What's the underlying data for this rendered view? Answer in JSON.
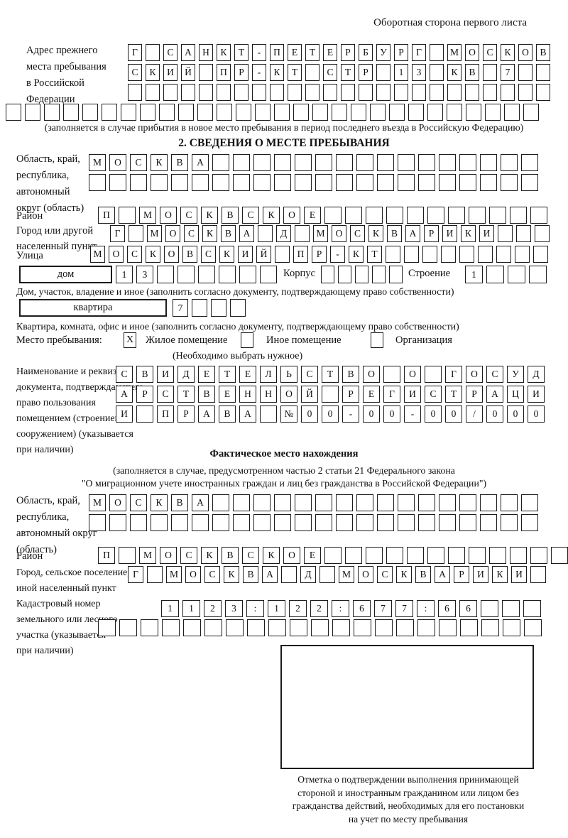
{
  "page": {
    "back_note": "Оборотная сторона первого листа"
  },
  "prev_address": {
    "label": "Адрес прежнего\nместа пребывания\nв Российской\nФедерации",
    "row1": [
      "Г",
      "",
      "С",
      "А",
      "Н",
      "К",
      "Т",
      "-",
      "П",
      "Е",
      "Т",
      "Е",
      "Р",
      "Б",
      "У",
      "Р",
      "Г",
      "",
      "М",
      "О",
      "С",
      "К",
      "О",
      "В"
    ],
    "row2": [
      "С",
      "К",
      "И",
      "Й",
      "",
      "П",
      "Р",
      "-",
      "К",
      "Т",
      "",
      "С",
      "Т",
      "Р",
      "",
      "1",
      "3",
      "",
      "К",
      "В",
      "",
      "7",
      "",
      ""
    ],
    "row3": 24,
    "row4": 28,
    "note": "(заполняется в случае прибытия в новое место пребывания в период последнего въезда в Российскую Федерацию)"
  },
  "section2": {
    "title": "2. СВЕДЕНИЯ О МЕСТЕ ПРЕБЫВАНИЯ",
    "region": {
      "label": "Область, край,\nреспублика,\nавтономный\nокруг (область)",
      "row1": [
        "М",
        "О",
        "С",
        "К",
        "В",
        "А",
        "",
        "",
        "",
        "",
        "",
        "",
        "",
        "",
        "",
        "",
        "",
        "",
        "",
        "",
        "",
        ""
      ],
      "row2": 22
    },
    "district": {
      "label": "Район",
      "row": [
        "П",
        "",
        "М",
        "О",
        "С",
        "К",
        "В",
        "С",
        "К",
        "О",
        "Е",
        "",
        "",
        "",
        "",
        "",
        "",
        "",
        "",
        "",
        "",
        ""
      ]
    },
    "city": {
      "label": "Город или другой\nнаселенный пункт",
      "row": [
        "Г",
        "",
        "М",
        "О",
        "С",
        "К",
        "В",
        "А",
        "",
        "Д",
        "",
        "М",
        "О",
        "С",
        "К",
        "В",
        "А",
        "Р",
        "И",
        "К",
        "И",
        "",
        "",
        ""
      ]
    },
    "street": {
      "label": "Улица",
      "row": [
        "М",
        "О",
        "С",
        "К",
        "О",
        "В",
        "С",
        "К",
        "И",
        "Й",
        "",
        "П",
        "Р",
        "-",
        "К",
        "Т",
        "",
        "",
        "",
        "",
        "",
        "",
        "",
        "",
        ""
      ]
    },
    "house": {
      "box_label": "дом",
      "cells": [
        "1",
        "3",
        "",
        "",
        "",
        "",
        "",
        ""
      ],
      "korpus_label": "Корпус",
      "korpus_cells": 5,
      "stroenie_label": "Строение",
      "stroenie_cells": [
        "1",
        "",
        "",
        ""
      ],
      "note": "Дом, участок, владение и иное (заполнить согласно документу, подтверждающему право собственности)"
    },
    "apartment": {
      "box_label": "квартира",
      "cells": [
        "7",
        "",
        "",
        ""
      ],
      "note": "Квартира, комната, офис и иное (заполнить согласно документу, подтверждающему право собственности)"
    },
    "stay_type": {
      "label": "Место пребывания:",
      "options": [
        {
          "label": "Жилое помещение",
          "checked": "X"
        },
        {
          "label": "Иное помещение",
          "checked": ""
        },
        {
          "label": "Организация",
          "checked": ""
        }
      ],
      "note": "(Необходимо выбрать нужное)"
    },
    "document": {
      "label": "Наименование и реквизиты\nдокумента, подтверждающего\nправо пользования\nпомещением (строением,\nсооружением) (указывается\nпри наличии)",
      "row1": [
        "С",
        "В",
        "И",
        "Д",
        "Е",
        "Т",
        "Е",
        "Л",
        "Ь",
        "С",
        "Т",
        "В",
        "О",
        "",
        "О",
        "",
        "Г",
        "О",
        "С",
        "У",
        "Д"
      ],
      "row2": [
        "А",
        "Р",
        "С",
        "Т",
        "В",
        "Е",
        "Н",
        "Н",
        "О",
        "Й",
        "",
        "Р",
        "Е",
        "Г",
        "И",
        "С",
        "Т",
        "Р",
        "А",
        "Ц",
        "И"
      ],
      "row3": [
        "И",
        "",
        "П",
        "Р",
        "А",
        "В",
        "А",
        "",
        "№",
        "0",
        "0",
        "-",
        "0",
        "0",
        "-",
        "0",
        "0",
        "/",
        "0",
        "0",
        "0"
      ]
    }
  },
  "actual_location": {
    "title": "Фактическое место нахождения",
    "note1": "(заполняется в случае, предусмотренном частью 2 статьи 21 Федерального закона",
    "note2": "\"О миграционном учете иностранных граждан и лиц без гражданства в Российской Федерации\")",
    "region": {
      "label": "Область, край,\nреспублика,\nавтономный округ\n(область)",
      "row1": [
        "М",
        "О",
        "С",
        "К",
        "В",
        "А",
        "",
        "",
        "",
        "",
        "",
        "",
        "",
        "",
        "",
        "",
        "",
        "",
        "",
        "",
        "",
        ""
      ],
      "row2": 22
    },
    "district": {
      "label": "Район",
      "row": [
        "П",
        "",
        "М",
        "О",
        "С",
        "К",
        "В",
        "С",
        "К",
        "О",
        "Е",
        "",
        "",
        "",
        "",
        "",
        "",
        "",
        "",
        "",
        "",
        "",
        ""
      ]
    },
    "city": {
      "label": "Город, сельское поселение,\nиной населенный пункт",
      "row": [
        "Г",
        "",
        "М",
        "О",
        "С",
        "К",
        "В",
        "А",
        "",
        "Д",
        "",
        "М",
        "О",
        "С",
        "К",
        "В",
        "А",
        "Р",
        "И",
        "К",
        "И",
        ""
      ]
    },
    "cadastral": {
      "label": "Кадастровый номер\nземельного или лесного\nучастка (указывается\nпри наличии)",
      "row1": [
        "1",
        "1",
        "2",
        "3",
        ":",
        "1",
        "2",
        "2",
        ":",
        "6",
        "7",
        "7",
        ":",
        "6",
        "6",
        "",
        "",
        ""
      ],
      "row2": 21
    },
    "stamp_note": "Отметка о подтверждении выполнения принимающей\nстороной и иностранным гражданином или лицом без\nгражданства действий, необходимых для его постановки\nна учет по месту пребывания"
  }
}
